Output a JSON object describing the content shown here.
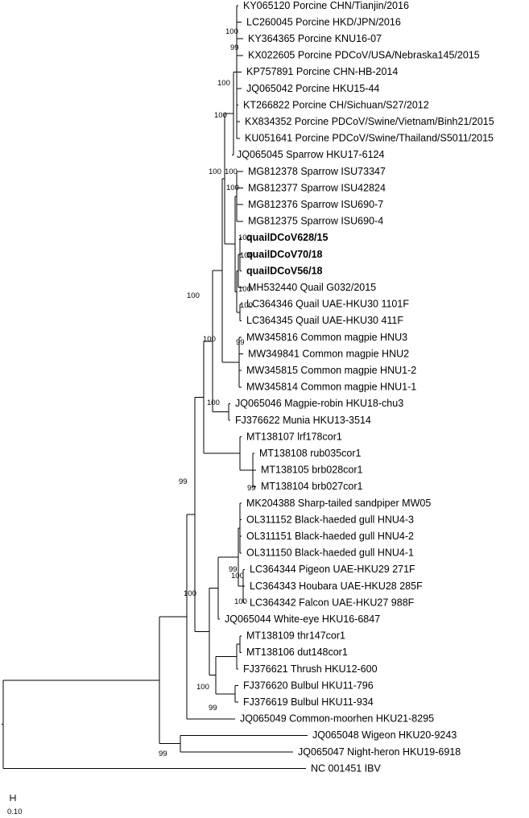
{
  "leaves": [
    {
      "label": "KY065120 Porcine CHN/Tianjin/2016",
      "bold": false
    },
    {
      "label": "LC260045 Porcine HKD/JPN/2016",
      "bold": false
    },
    {
      "label": "KY364365 Porcine KNU16-07",
      "bold": false
    },
    {
      "label": "KX022605 Porcine PDCoV/USA/Nebraska145/2015",
      "bold": false
    },
    {
      "label": "KP757891 Porcine CHN-HB-2014",
      "bold": false
    },
    {
      "label": "JQ065042 Porcine HKU15-44",
      "bold": false
    },
    {
      "label": "KT266822 Porcine CH/Sichuan/S27/2012",
      "bold": false
    },
    {
      "label": "KX834352 Porcine PDCoV/Swine/Vietnam/Binh21/2015",
      "bold": false
    },
    {
      "label": "KU051641 Porcine PDCoV/Swine/Thailand/S5011/2015",
      "bold": false
    },
    {
      "label": "JQ065045 Sparrow HKU17-6124",
      "bold": false
    },
    {
      "label": "MG812378 Sparrow ISU73347",
      "bold": false
    },
    {
      "label": "MG812377 Sparrow ISU42824",
      "bold": false
    },
    {
      "label": "MG812376 Sparrow ISU690-7",
      "bold": false
    },
    {
      "label": "MG812375 Sparrow ISU690-4",
      "bold": false
    },
    {
      "label": "quailDCoV628/15",
      "bold": true
    },
    {
      "label": "quailDCoV70/18",
      "bold": true
    },
    {
      "label": "quailDCoV56/18",
      "bold": true
    },
    {
      "label": "MH532440 Quail G032/2015",
      "bold": false
    },
    {
      "label": "LC364346 Quail UAE-HKU30 1101F",
      "bold": false
    },
    {
      "label": "LC364345 Quail UAE-HKU30 411F",
      "bold": false
    },
    {
      "label": "MW345816 Common magpie HNU3",
      "bold": false
    },
    {
      "label": "MW349841 Common magpie HNU2",
      "bold": false
    },
    {
      "label": "MW345815 Common magpie HNU1-2",
      "bold": false
    },
    {
      "label": "MW345814 Common magpie HNU1-1",
      "bold": false
    },
    {
      "label": "JQ065046 Magpie-robin HKU18-chu3",
      "bold": false
    },
    {
      "label": "FJ376622 Munia HKU13-3514",
      "bold": false
    },
    {
      "label": "MT138107 lrf178cor1",
      "bold": false
    },
    {
      "label": "MT138108 rub035cor1",
      "bold": false
    },
    {
      "label": "MT138105 brb028cor1",
      "bold": false
    },
    {
      "label": "MT138104 brb027cor1",
      "bold": false
    },
    {
      "label": "MK204388 Sharp-tailed sandpiper MW05",
      "bold": false
    },
    {
      "label": "OL311152 Black-haeded gull HNU4-3",
      "bold": false
    },
    {
      "label": "OL311151 Black-haeded gull HNU4-2",
      "bold": false
    },
    {
      "label": "OL311150 Black-haeded gull HNU4-1",
      "bold": false
    },
    {
      "label": "LC364344 Pigeon UAE-HKU29 271F",
      "bold": false
    },
    {
      "label": "LC364343 Houbara UAE-HKU28 285F",
      "bold": false
    },
    {
      "label": "LC364342 Falcon UAE-HKU27 988F",
      "bold": false
    },
    {
      "label": "JQ065044 White-eye HKU16-6847",
      "bold": false
    },
    {
      "label": "MT138109 thr147cor1",
      "bold": false
    },
    {
      "label": "MT138106 dut148cor1",
      "bold": false
    },
    {
      "label": "FJ376621 Thrush HKU12-600",
      "bold": false
    },
    {
      "label": "FJ376620 Bulbul HKU11-796",
      "bold": false
    },
    {
      "label": "FJ376619 Bulbul HKU11-934",
      "bold": false
    },
    {
      "label": "JQ065049 Common-moorhen HKU21-8295",
      "bold": false
    },
    {
      "label": "JQ065048 Wigeon HKU20-9243",
      "bold": false
    },
    {
      "label": "JQ065047 Night-heron HKU19-6918",
      "bold": false
    },
    {
      "label": "NC 001451 IBV",
      "bold": false
    }
  ],
  "bootstrap": [
    "100",
    "99",
    "100",
    "100",
    "100",
    "100",
    "100",
    "100",
    "100",
    "100",
    "100",
    "100",
    "99",
    "100",
    "100",
    "99",
    "99",
    "99",
    "100",
    "100",
    "100",
    "100",
    "99"
  ],
  "scale_bar": {
    "label": "0.10"
  }
}
